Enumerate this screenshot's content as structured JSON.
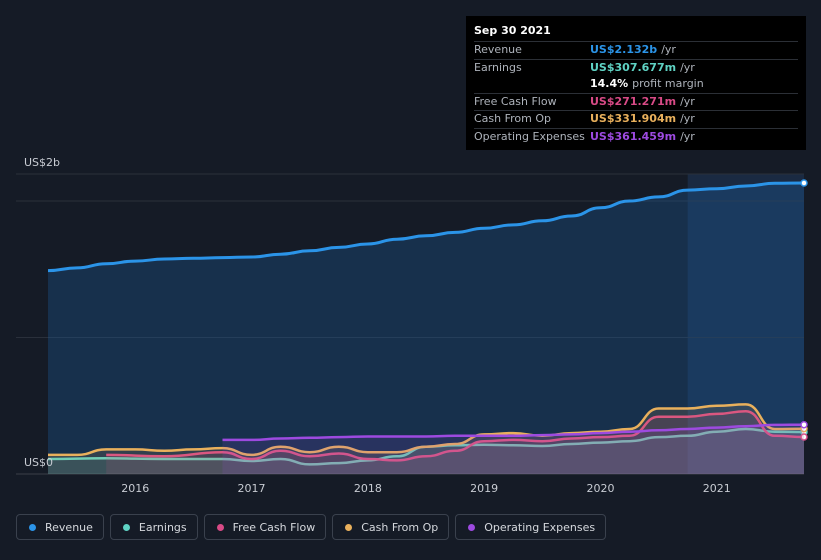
{
  "chart_data": {
    "type": "area",
    "y_axis": {
      "top_label": "US$2b",
      "bottom_label": "US$0",
      "ylim": [
        0,
        2.2
      ],
      "unit": "billions USD"
    },
    "x_ticks": [
      "2016",
      "2017",
      "2018",
      "2019",
      "2020",
      "2021"
    ],
    "x_range": [
      2015.25,
      2021.75
    ],
    "highlight_from": 2020.75,
    "series": [
      {
        "name": "Revenue",
        "color": "#2b94e8",
        "fill": true,
        "points": [
          [
            2015.25,
            1.49
          ],
          [
            2015.5,
            1.51
          ],
          [
            2015.75,
            1.54
          ],
          [
            2016.0,
            1.56
          ],
          [
            2016.25,
            1.575
          ],
          [
            2016.5,
            1.58
          ],
          [
            2016.75,
            1.585
          ],
          [
            2017.0,
            1.59
          ],
          [
            2017.25,
            1.61
          ],
          [
            2017.5,
            1.635
          ],
          [
            2017.75,
            1.66
          ],
          [
            2018.0,
            1.685
          ],
          [
            2018.25,
            1.72
          ],
          [
            2018.5,
            1.745
          ],
          [
            2018.75,
            1.77
          ],
          [
            2019.0,
            1.8
          ],
          [
            2019.25,
            1.825
          ],
          [
            2019.5,
            1.855
          ],
          [
            2019.75,
            1.89
          ],
          [
            2020.0,
            1.95
          ],
          [
            2020.25,
            2.0
          ],
          [
            2020.5,
            2.03
          ],
          [
            2020.75,
            2.08
          ],
          [
            2021.0,
            2.09
          ],
          [
            2021.25,
            2.11
          ],
          [
            2021.5,
            2.13
          ],
          [
            2021.75,
            2.132
          ]
        ]
      },
      {
        "name": "Earnings",
        "color": "#5fd3c4",
        "fill": false,
        "points": [
          [
            2015.25,
            0.11
          ],
          [
            2015.75,
            0.115
          ],
          [
            2016.25,
            0.11
          ],
          [
            2016.75,
            0.11
          ],
          [
            2017.0,
            0.095
          ],
          [
            2017.25,
            0.11
          ],
          [
            2017.5,
            0.07
          ],
          [
            2017.75,
            0.08
          ],
          [
            2018.0,
            0.1
          ],
          [
            2018.25,
            0.13
          ],
          [
            2018.5,
            0.2
          ],
          [
            2018.75,
            0.21
          ],
          [
            2019.0,
            0.215
          ],
          [
            2019.25,
            0.21
          ],
          [
            2019.5,
            0.205
          ],
          [
            2019.75,
            0.22
          ],
          [
            2020.0,
            0.23
          ],
          [
            2020.25,
            0.24
          ],
          [
            2020.5,
            0.27
          ],
          [
            2020.75,
            0.28
          ],
          [
            2021.0,
            0.31
          ],
          [
            2021.25,
            0.33
          ],
          [
            2021.5,
            0.31
          ],
          [
            2021.75,
            0.308
          ]
        ]
      },
      {
        "name": "Free Cash Flow",
        "color": "#d84a86",
        "fill": false,
        "points": [
          [
            2015.75,
            0.14
          ],
          [
            2016.25,
            0.13
          ],
          [
            2016.75,
            0.16
          ],
          [
            2017.0,
            0.11
          ],
          [
            2017.25,
            0.17
          ],
          [
            2017.5,
            0.13
          ],
          [
            2017.75,
            0.15
          ],
          [
            2018.0,
            0.11
          ],
          [
            2018.25,
            0.1
          ],
          [
            2018.5,
            0.13
          ],
          [
            2018.75,
            0.17
          ],
          [
            2019.0,
            0.24
          ],
          [
            2019.25,
            0.25
          ],
          [
            2019.5,
            0.24
          ],
          [
            2019.75,
            0.26
          ],
          [
            2020.0,
            0.27
          ],
          [
            2020.25,
            0.28
          ],
          [
            2020.5,
            0.42
          ],
          [
            2020.75,
            0.42
          ],
          [
            2021.0,
            0.44
          ],
          [
            2021.25,
            0.46
          ],
          [
            2021.5,
            0.28
          ],
          [
            2021.75,
            0.271
          ]
        ]
      },
      {
        "name": "Cash From Op",
        "color": "#e9b05c",
        "fill": false,
        "points": [
          [
            2015.25,
            0.14
          ],
          [
            2015.5,
            0.14
          ],
          [
            2015.75,
            0.18
          ],
          [
            2016.0,
            0.18
          ],
          [
            2016.25,
            0.17
          ],
          [
            2016.5,
            0.18
          ],
          [
            2016.75,
            0.19
          ],
          [
            2017.0,
            0.14
          ],
          [
            2017.25,
            0.2
          ],
          [
            2017.5,
            0.16
          ],
          [
            2017.75,
            0.2
          ],
          [
            2018.0,
            0.16
          ],
          [
            2018.25,
            0.16
          ],
          [
            2018.5,
            0.2
          ],
          [
            2018.75,
            0.22
          ],
          [
            2019.0,
            0.29
          ],
          [
            2019.25,
            0.3
          ],
          [
            2019.5,
            0.28
          ],
          [
            2019.75,
            0.3
          ],
          [
            2020.0,
            0.31
          ],
          [
            2020.25,
            0.33
          ],
          [
            2020.5,
            0.48
          ],
          [
            2020.75,
            0.48
          ],
          [
            2021.0,
            0.5
          ],
          [
            2021.25,
            0.51
          ],
          [
            2021.5,
            0.33
          ],
          [
            2021.75,
            0.332
          ]
        ]
      },
      {
        "name": "Operating Expenses",
        "color": "#9d4ae0",
        "fill": false,
        "points": [
          [
            2016.75,
            0.25
          ],
          [
            2017.0,
            0.25
          ],
          [
            2017.25,
            0.26
          ],
          [
            2017.5,
            0.265
          ],
          [
            2017.75,
            0.27
          ],
          [
            2018.0,
            0.275
          ],
          [
            2018.25,
            0.275
          ],
          [
            2018.5,
            0.275
          ],
          [
            2018.75,
            0.28
          ],
          [
            2019.0,
            0.28
          ],
          [
            2019.25,
            0.28
          ],
          [
            2019.5,
            0.285
          ],
          [
            2019.75,
            0.29
          ],
          [
            2020.0,
            0.3
          ],
          [
            2020.25,
            0.31
          ],
          [
            2020.5,
            0.32
          ],
          [
            2020.75,
            0.33
          ],
          [
            2021.0,
            0.34
          ],
          [
            2021.25,
            0.35
          ],
          [
            2021.5,
            0.36
          ],
          [
            2021.75,
            0.361
          ]
        ]
      }
    ]
  },
  "tooltip": {
    "date": "Sep 30 2021",
    "rows": [
      {
        "label": "Revenue",
        "value": "US$2.132b",
        "unit": "/yr",
        "color": "#2b94e8"
      },
      {
        "label": "Earnings",
        "value": "US$307.677m",
        "unit": "/yr",
        "color": "#5fd3c4"
      },
      {
        "label": "",
        "value": "14.4%",
        "unit": "profit margin",
        "color": "#ffffff"
      },
      {
        "label": "Free Cash Flow",
        "value": "US$271.271m",
        "unit": "/yr",
        "color": "#d84a86"
      },
      {
        "label": "Cash From Op",
        "value": "US$331.904m",
        "unit": "/yr",
        "color": "#e9b05c"
      },
      {
        "label": "Operating Expenses",
        "value": "US$361.459m",
        "unit": "/yr",
        "color": "#9d4ae0"
      }
    ]
  },
  "legend": [
    {
      "label": "Revenue",
      "color": "#2b94e8"
    },
    {
      "label": "Earnings",
      "color": "#5fd3c4"
    },
    {
      "label": "Free Cash Flow",
      "color": "#d84a86"
    },
    {
      "label": "Cash From Op",
      "color": "#e9b05c"
    },
    {
      "label": "Operating Expenses",
      "color": "#9d4ae0"
    }
  ]
}
